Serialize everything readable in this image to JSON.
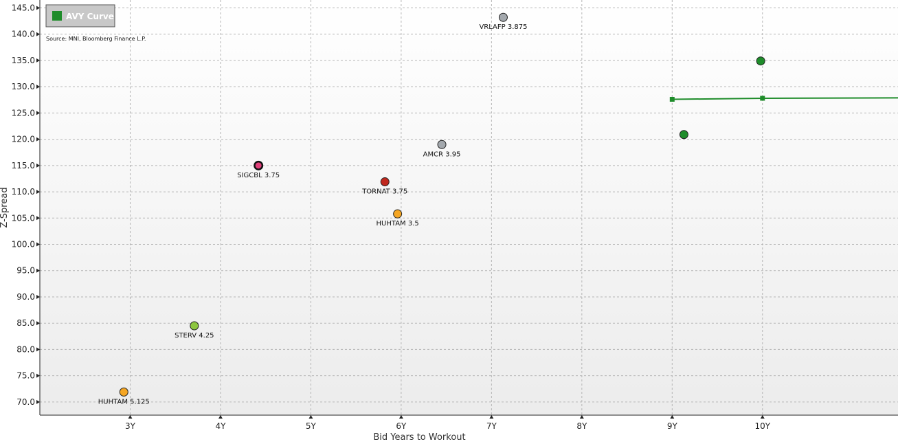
{
  "chart_data": {
    "type": "scatter",
    "source_note": "Source: MNI, Bloomberg Finance L.P.",
    "xlabel": "Bid Years to Workout",
    "ylabel": "Z-Spread",
    "xlim": [
      2.0,
      11.5
    ],
    "ylim": [
      67.5,
      146.5
    ],
    "x_ticks": [
      {
        "value": 3,
        "label": "3Y"
      },
      {
        "value": 4,
        "label": "4Y"
      },
      {
        "value": 5,
        "label": "5Y"
      },
      {
        "value": 6,
        "label": "6Y"
      },
      {
        "value": 7,
        "label": "7Y"
      },
      {
        "value": 8,
        "label": "8Y"
      },
      {
        "value": 9,
        "label": "9Y"
      },
      {
        "value": 10,
        "label": "10Y"
      }
    ],
    "y_ticks": [
      {
        "value": 70,
        "label": "70.0"
      },
      {
        "value": 75,
        "label": "75.0"
      },
      {
        "value": 80,
        "label": "80.0"
      },
      {
        "value": 85,
        "label": "85.0"
      },
      {
        "value": 90,
        "label": "90.0"
      },
      {
        "value": 95,
        "label": "95.0"
      },
      {
        "value": 100,
        "label": "100.0"
      },
      {
        "value": 105,
        "label": "105.0"
      },
      {
        "value": 110,
        "label": "110.0"
      },
      {
        "value": 115,
        "label": "115.0"
      },
      {
        "value": 120,
        "label": "120.0"
      },
      {
        "value": 125,
        "label": "125.0"
      },
      {
        "value": 130,
        "label": "130.0"
      },
      {
        "value": 135,
        "label": "135.0"
      },
      {
        "value": 140,
        "label": "140.0"
      },
      {
        "value": 145,
        "label": "145.0"
      }
    ],
    "grid": true,
    "legend": {
      "placement": "top-left",
      "entries": [
        {
          "label": "AVY Curve",
          "color": "#1e8c2a"
        }
      ]
    },
    "curve": {
      "name": "AVY Curve",
      "color": "#1e8c2a",
      "points": [
        {
          "x": 9.0,
          "y": 127.6
        },
        {
          "x": 10.0,
          "y": 127.8
        },
        {
          "x": 12.0,
          "y": 127.9
        }
      ]
    },
    "points": [
      {
        "label": "VRLAFP 3.875",
        "x": 7.13,
        "y": 143.2,
        "color": "#a3a8ad"
      },
      {
        "label": "AMCR 3.95",
        "x": 6.45,
        "y": 119.0,
        "color": "#a3a8ad"
      },
      {
        "label": "SIGCBL 3.75",
        "x": 4.42,
        "y": 115.0,
        "color": "#e0407a",
        "ring": true
      },
      {
        "label": "TORNAT 3.75",
        "x": 5.82,
        "y": 111.9,
        "color": "#c0281e"
      },
      {
        "label": "HUHTAM 3.5",
        "x": 5.96,
        "y": 105.8,
        "color": "#f5a623"
      },
      {
        "label": "STERV 4.25",
        "x": 3.71,
        "y": 84.5,
        "color": "#8cc63f"
      },
      {
        "label": "HUHTAM 5.125",
        "x": 2.93,
        "y": 71.9,
        "color": "#f5a623"
      },
      {
        "label": "",
        "x": 9.98,
        "y": 134.9,
        "color": "#1e8c2a"
      },
      {
        "label": "",
        "x": 9.13,
        "y": 120.9,
        "color": "#1e8c2a"
      }
    ]
  }
}
